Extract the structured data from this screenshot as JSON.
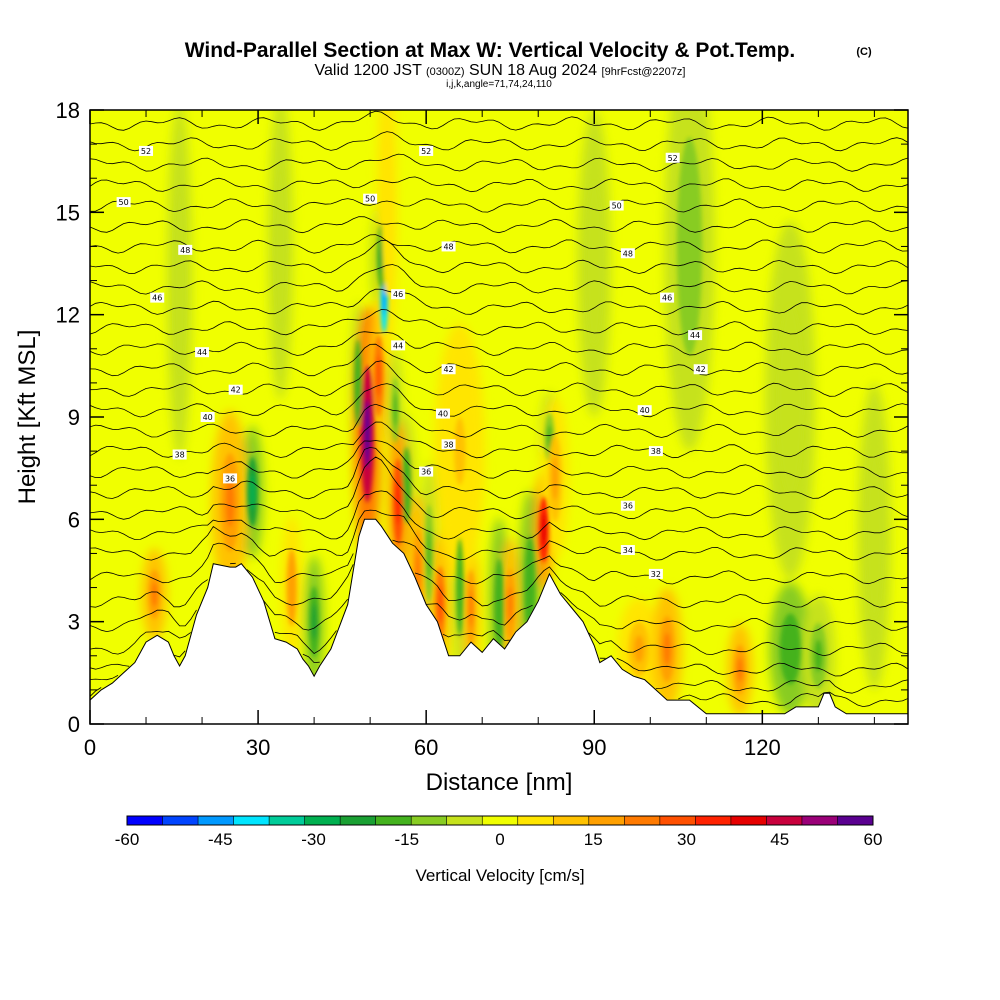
{
  "header": {
    "title_main": "Wind-Parallel Section at Max W: Vertical Velocity & Pot.Temp.",
    "title_mark": "(C)",
    "valid_prefix": "Valid 1200 JST",
    "valid_utc": "(0300Z)",
    "valid_date": "SUN 18 Aug 2024",
    "forecast": "[9hrFcst@2207z]",
    "ijk_line": "i,j,k,angle=71,74,24,110"
  },
  "chart_data": {
    "type": "heatmap",
    "title": "Wind-Parallel Section at Max W: Vertical Velocity & Pot.Temp.",
    "xlabel": "Distance [nm]",
    "ylabel": "Height [Kft MSL]",
    "xlim": [
      0,
      146
    ],
    "ylim": [
      0,
      18
    ],
    "x_ticks": [
      0,
      30,
      60,
      90,
      120
    ],
    "y_ticks": [
      0,
      3,
      6,
      9,
      12,
      15,
      18
    ],
    "colorbar": {
      "label": "Vertical Velocity [cm/s]",
      "min": -60,
      "max": 60,
      "tick_values": [
        -60,
        -45,
        -30,
        -15,
        0,
        15,
        30,
        45,
        60
      ],
      "colors": [
        "#0000ff",
        "#0044ff",
        "#0099ff",
        "#00e5ff",
        "#00cc99",
        "#00b050",
        "#1aa033",
        "#44b21e",
        "#88cc22",
        "#c6e21c",
        "#f0ff00",
        "#ffe500",
        "#ffc200",
        "#ffa000",
        "#ff7a00",
        "#ff5000",
        "#ff2200",
        "#e60000",
        "#c8003c",
        "#9a0078",
        "#5a0090"
      ]
    },
    "terrain": [
      [
        0,
        0.7
      ],
      [
        2,
        1.0
      ],
      [
        4,
        1.2
      ],
      [
        6,
        1.5
      ],
      [
        8,
        1.8
      ],
      [
        9,
        2.1
      ],
      [
        10,
        2.4
      ],
      [
        12,
        2.6
      ],
      [
        14,
        2.4
      ],
      [
        15,
        2.0
      ],
      [
        16,
        1.7
      ],
      [
        17,
        2.0
      ],
      [
        19,
        3.2
      ],
      [
        21,
        4.0
      ],
      [
        22,
        4.7
      ],
      [
        25,
        4.6
      ],
      [
        26,
        4.6
      ],
      [
        27,
        4.7
      ],
      [
        29,
        4.3
      ],
      [
        31,
        3.6
      ],
      [
        33,
        2.5
      ],
      [
        35,
        2.4
      ],
      [
        37,
        2.2
      ],
      [
        38,
        1.9
      ],
      [
        39,
        1.7
      ],
      [
        40,
        1.4
      ],
      [
        41,
        1.7
      ],
      [
        43,
        2.2
      ],
      [
        46,
        3.5
      ],
      [
        48,
        5.5
      ],
      [
        49,
        6.0
      ],
      [
        51,
        6.0
      ],
      [
        52,
        5.8
      ],
      [
        54,
        5.3
      ],
      [
        56,
        5.0
      ],
      [
        58,
        4.3
      ],
      [
        60,
        3.5
      ],
      [
        62,
        3.0
      ],
      [
        63,
        2.5
      ],
      [
        64,
        2.0
      ],
      [
        66,
        2.0
      ],
      [
        68,
        2.4
      ],
      [
        70,
        2.1
      ],
      [
        72,
        2.5
      ],
      [
        74,
        2.2
      ],
      [
        76,
        2.7
      ],
      [
        78,
        3.0
      ],
      [
        80,
        3.6
      ],
      [
        82,
        4.4
      ],
      [
        84,
        3.8
      ],
      [
        86,
        3.4
      ],
      [
        88,
        3.0
      ],
      [
        90,
        2.3
      ],
      [
        91,
        1.8
      ],
      [
        93,
        2.0
      ],
      [
        95,
        1.6
      ],
      [
        97,
        1.4
      ],
      [
        99,
        1.3
      ],
      [
        101,
        1.0
      ],
      [
        103,
        0.7
      ],
      [
        107,
        0.7
      ],
      [
        110,
        0.3
      ],
      [
        124,
        0.3
      ],
      [
        126,
        0.5
      ],
      [
        130,
        0.5
      ],
      [
        131,
        0.9
      ],
      [
        132,
        0.9
      ],
      [
        133,
        0.5
      ],
      [
        135,
        0.3
      ],
      [
        146,
        0.3
      ]
    ],
    "updrafts": [
      {
        "x": 11.5,
        "y": 3.8,
        "w": 20,
        "rx": 1.5,
        "ry": 0.9
      },
      {
        "x": 25.0,
        "y": 6.5,
        "w": 22,
        "rx": 2.2,
        "ry": 1.8
      },
      {
        "x": 36.0,
        "y": 4.0,
        "w": 18,
        "rx": 1.2,
        "ry": 1.4
      },
      {
        "x": 49.5,
        "y": 8.5,
        "w": 55,
        "rx": 1.6,
        "ry": 2.5
      },
      {
        "x": 51.5,
        "y": 10.2,
        "w": 30,
        "rx": 1.2,
        "ry": 1.5
      },
      {
        "x": 55.0,
        "y": 6.5,
        "w": 35,
        "rx": 1.2,
        "ry": 1.6
      },
      {
        "x": 58.5,
        "y": 4.5,
        "w": 20,
        "rx": 1.2,
        "ry": 1.5
      },
      {
        "x": 62.5,
        "y": 3.5,
        "w": 28,
        "rx": 1.2,
        "ry": 1.4
      },
      {
        "x": 68.0,
        "y": 3.4,
        "w": 22,
        "rx": 1.0,
        "ry": 1.4
      },
      {
        "x": 75.0,
        "y": 3.5,
        "w": 20,
        "rx": 1.2,
        "ry": 1.3
      },
      {
        "x": 81.0,
        "y": 5.7,
        "w": 40,
        "rx": 1.2,
        "ry": 1.2
      },
      {
        "x": 83.0,
        "y": 7.2,
        "w": 15,
        "rx": 1.6,
        "ry": 1.6
      },
      {
        "x": 98.0,
        "y": 2.2,
        "w": 15,
        "rx": 2.5,
        "ry": 1.0
      },
      {
        "x": 103.0,
        "y": 2.2,
        "w": 22,
        "rx": 1.8,
        "ry": 1.2
      },
      {
        "x": 116.0,
        "y": 1.6,
        "w": 20,
        "rx": 1.5,
        "ry": 0.9
      },
      {
        "x": 66.0,
        "y": 8.0,
        "w": 10,
        "rx": 3.0,
        "ry": 2.5
      },
      {
        "x": 53.0,
        "y": 15.0,
        "w": 8,
        "rx": 1.2,
        "ry": 3.0
      }
    ],
    "downdrafts": [
      {
        "x": 29.0,
        "y": 6.8,
        "w": -28,
        "rx": 1.3,
        "ry": 1.3
      },
      {
        "x": 52.5,
        "y": 12.5,
        "w": -48,
        "rx": 0.9,
        "ry": 1.3
      },
      {
        "x": 52.0,
        "y": 13.7,
        "w": -25,
        "rx": 1.1,
        "ry": 1.2
      },
      {
        "x": 47.8,
        "y": 10.0,
        "w": -18,
        "rx": 0.9,
        "ry": 1.6
      },
      {
        "x": 54.5,
        "y": 9.2,
        "w": -15,
        "rx": 0.9,
        "ry": 1.2
      },
      {
        "x": 56.5,
        "y": 7.0,
        "w": -18,
        "rx": 1.1,
        "ry": 1.4
      },
      {
        "x": 60.5,
        "y": 5.0,
        "w": -16,
        "rx": 1.0,
        "ry": 1.8
      },
      {
        "x": 40.0,
        "y": 3.0,
        "w": -22,
        "rx": 1.2,
        "ry": 1.3
      },
      {
        "x": 66.0,
        "y": 4.0,
        "w": -18,
        "rx": 0.9,
        "ry": 1.8
      },
      {
        "x": 73.0,
        "y": 3.5,
        "w": -20,
        "rx": 1.2,
        "ry": 1.7
      },
      {
        "x": 78.5,
        "y": 4.0,
        "w": -20,
        "rx": 1.3,
        "ry": 1.9
      },
      {
        "x": 82.0,
        "y": 8.4,
        "w": -15,
        "rx": 1.2,
        "ry": 0.9
      },
      {
        "x": 107.0,
        "y": 14.0,
        "w": -12,
        "rx": 3.0,
        "ry": 4.0
      },
      {
        "x": 125.0,
        "y": 2.2,
        "w": -20,
        "rx": 2.5,
        "ry": 1.3
      },
      {
        "x": 130.0,
        "y": 2.0,
        "w": -16,
        "rx": 2.0,
        "ry": 1.2
      },
      {
        "x": 34.0,
        "y": 14.0,
        "w": -8,
        "rx": 1.5,
        "ry": 3.0
      },
      {
        "x": 16.0,
        "y": 13.0,
        "w": -7,
        "rx": 1.5,
        "ry": 3.5
      },
      {
        "x": 90.0,
        "y": 13.5,
        "w": -7,
        "rx": 2.0,
        "ry": 3.0
      },
      {
        "x": 125.0,
        "y": 9.5,
        "w": -7,
        "rx": 3.0,
        "ry": 3.5
      },
      {
        "x": 140.0,
        "y": 5.5,
        "w": -7,
        "rx": 2.0,
        "ry": 3.0
      }
    ],
    "theta_labels": [
      {
        "x": 10,
        "y": 16.8,
        "text": "52"
      },
      {
        "x": 60,
        "y": 16.8,
        "text": "52"
      },
      {
        "x": 104,
        "y": 16.6,
        "text": "52"
      },
      {
        "x": 6,
        "y": 15.3,
        "text": "50"
      },
      {
        "x": 50,
        "y": 15.4,
        "text": "50"
      },
      {
        "x": 94,
        "y": 15.2,
        "text": "50"
      },
      {
        "x": 17,
        "y": 13.9,
        "text": "48"
      },
      {
        "x": 64,
        "y": 14.0,
        "text": "48"
      },
      {
        "x": 96,
        "y": 13.8,
        "text": "48"
      },
      {
        "x": 12,
        "y": 12.5,
        "text": "46"
      },
      {
        "x": 55,
        "y": 12.6,
        "text": "46"
      },
      {
        "x": 103,
        "y": 12.5,
        "text": "46"
      },
      {
        "x": 20,
        "y": 10.9,
        "text": "44"
      },
      {
        "x": 55,
        "y": 11.1,
        "text": "44"
      },
      {
        "x": 108,
        "y": 11.4,
        "text": "44"
      },
      {
        "x": 26,
        "y": 9.8,
        "text": "42"
      },
      {
        "x": 64,
        "y": 10.4,
        "text": "42"
      },
      {
        "x": 109,
        "y": 10.4,
        "text": "42"
      },
      {
        "x": 21,
        "y": 9.0,
        "text": "40"
      },
      {
        "x": 63,
        "y": 9.1,
        "text": "40"
      },
      {
        "x": 99,
        "y": 9.2,
        "text": "40"
      },
      {
        "x": 16,
        "y": 7.9,
        "text": "38"
      },
      {
        "x": 64,
        "y": 8.2,
        "text": "38"
      },
      {
        "x": 101,
        "y": 8.0,
        "text": "38"
      },
      {
        "x": 25,
        "y": 7.2,
        "text": "36"
      },
      {
        "x": 60,
        "y": 7.4,
        "text": "36"
      },
      {
        "x": 96,
        "y": 6.4,
        "text": "36"
      },
      {
        "x": 96,
        "y": 5.1,
        "text": "34"
      },
      {
        "x": 101,
        "y": 4.4,
        "text": "32"
      }
    ]
  }
}
